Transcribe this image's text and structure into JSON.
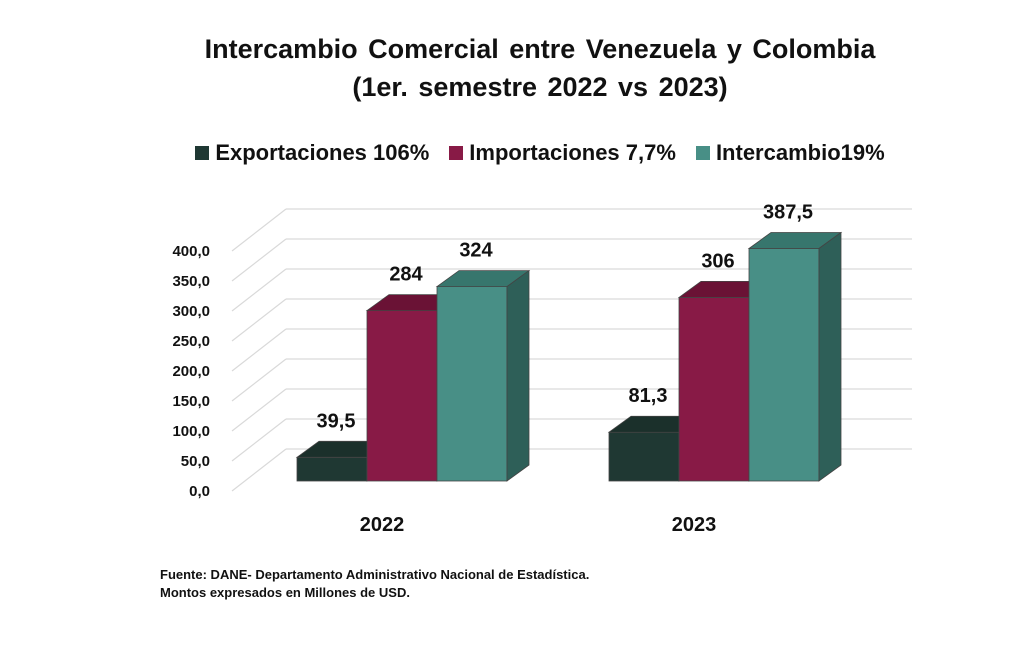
{
  "title": {
    "line1": "Intercambio Comercial entre Venezuela y Colombia",
    "line2": "(1er. semestre 2022 vs 2023)"
  },
  "legend": [
    {
      "label": "Exportaciones 106%",
      "color": "#1f3833"
    },
    {
      "label": "Importaciones 7,7%",
      "color": "#881a46"
    },
    {
      "label": "Intercambio19%",
      "color": "#488f86"
    }
  ],
  "source": {
    "line1": "Fuente: DANE- Departamento Administrativo Nacional de Estadística.",
    "line2": "Montos expresados en Millones de USD."
  },
  "chart_data": {
    "type": "bar",
    "categories": [
      "2022",
      "2023"
    ],
    "series": [
      {
        "name": "Exportaciones 106%",
        "values": [
          39.5,
          81.3
        ],
        "labels": [
          "39,5",
          "81,3"
        ],
        "color": "#1f3833",
        "top_color": "#1b302b",
        "side_color": "#172925"
      },
      {
        "name": "Importaciones 7,7%",
        "values": [
          284,
          306
        ],
        "labels": [
          "284",
          "306"
        ],
        "color": "#881a46",
        "top_color": "#6a1235",
        "side_color": "#5c0f2d"
      },
      {
        "name": "Intercambio19%",
        "values": [
          324,
          387.5
        ],
        "labels": [
          "324",
          "387,5"
        ],
        "color": "#488f86",
        "top_color": "#37766d",
        "side_color": "#2e5f58"
      }
    ],
    "ytick_labels": [
      "0,0",
      "50,0",
      "100,0",
      "150,0",
      "200,0",
      "250,0",
      "300,0",
      "350,0",
      "400,0"
    ],
    "ytick_values": [
      0,
      50,
      100,
      150,
      200,
      250,
      300,
      350,
      400
    ],
    "ylim": [
      0,
      450
    ],
    "grid": true,
    "legend_position": "top"
  }
}
